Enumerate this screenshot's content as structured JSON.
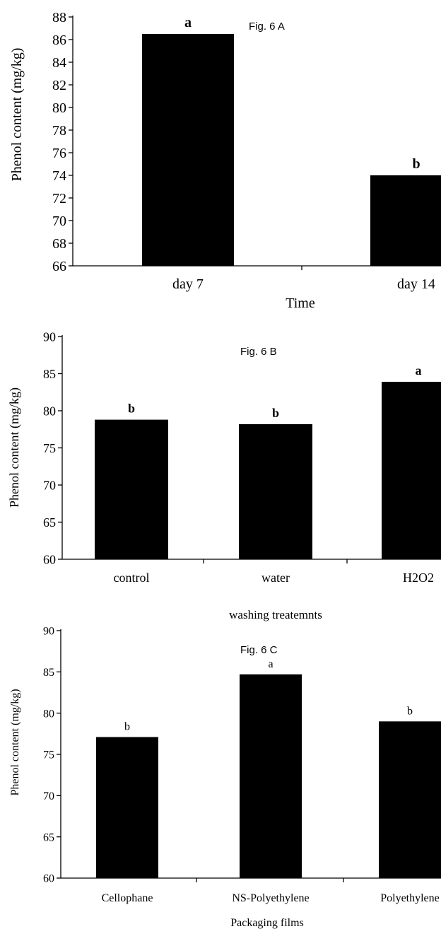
{
  "chart_data": [
    {
      "type": "bar",
      "figure_label": "Fig. 6 A",
      "categories": [
        "day 7",
        "day 14"
      ],
      "values": [
        86.5,
        74.0
      ],
      "letters": [
        "a",
        "b"
      ],
      "xlabel": "Time",
      "ylabel": "Phenol content (mg/kg)",
      "ylim": [
        66,
        88
      ],
      "yticks": [
        66,
        68,
        70,
        72,
        74,
        76,
        78,
        80,
        82,
        84,
        86,
        88
      ],
      "letter_style": "bold",
      "grid": false
    },
    {
      "type": "bar",
      "figure_label": "Fig. 6 B",
      "categories": [
        "control",
        "water",
        "H2O2"
      ],
      "values": [
        78.8,
        78.2,
        83.9
      ],
      "letters": [
        "b",
        "b",
        "a"
      ],
      "xlabel": "washing treatemnts",
      "ylabel": "Phenol content (mg/kg)",
      "ylim": [
        60,
        90
      ],
      "yticks": [
        60,
        65,
        70,
        75,
        80,
        85,
        90
      ],
      "letter_style": "bold",
      "grid": false
    },
    {
      "type": "bar",
      "figure_label": "Fig. 6 C",
      "categories": [
        "Cellophane",
        "NS-Polyethylene",
        "Polyethylene"
      ],
      "values": [
        77.1,
        84.7,
        79.0
      ],
      "letters": [
        "b",
        "a",
        "b"
      ],
      "xlabel": "Packaging films",
      "ylabel": "Phenol content (mg/kg)",
      "ylim": [
        60,
        90
      ],
      "yticks": [
        60,
        65,
        70,
        75,
        80,
        85,
        90
      ],
      "letter_style": "normal",
      "grid": false
    }
  ]
}
